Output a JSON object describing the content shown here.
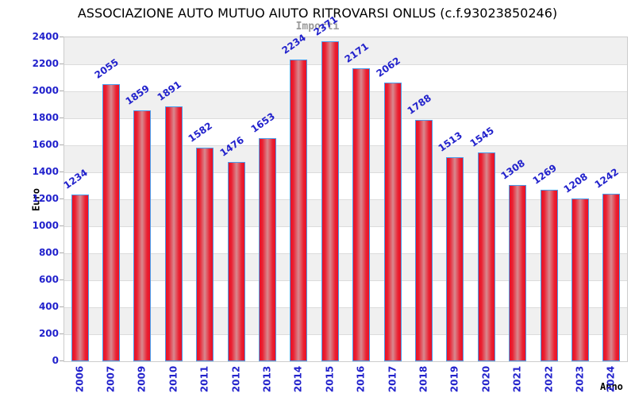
{
  "header": {
    "title": "ASSOCIAZIONE AUTO MUTUO AIUTO RITROVARSI ONLUS (c.f.93023850246)",
    "subtitle": "Importi"
  },
  "chart_data": {
    "type": "bar",
    "title": "Importi",
    "xlabel": "Anno",
    "ylabel": "Euro",
    "categories": [
      "2006",
      "2007",
      "2009",
      "2010",
      "2011",
      "2012",
      "2013",
      "2014",
      "2015",
      "2016",
      "2017",
      "2018",
      "2019",
      "2020",
      "2021",
      "2022",
      "2023",
      "2024"
    ],
    "values": [
      1234,
      2055,
      1859,
      1891,
      1582,
      1476,
      1653,
      2234,
      2371,
      2171,
      2062,
      1788,
      1513,
      1545,
      1308,
      1269,
      1208,
      1242
    ],
    "ylim": [
      0,
      2400
    ],
    "ytick_interval": 200,
    "yticks": [
      0,
      200,
      400,
      600,
      800,
      1000,
      1200,
      1400,
      1600,
      1800,
      2000,
      2200,
      2400
    ],
    "grid": true,
    "legend": "none",
    "bands_interval": 200
  },
  "colors": {
    "tick_label": "#2222cc",
    "value_label": "#2222cc",
    "bar_edge_red": "#e81126",
    "bar_center_light": "#d8898f",
    "bar_border_blue": "#4a9ceb",
    "band_gray": "#f0f0f0",
    "band_white": "#ffffff",
    "grid_line": "#dcdcdc",
    "plot_border": "#cccccc",
    "subtitle_gray": "#999999",
    "title_black": "#000000"
  }
}
